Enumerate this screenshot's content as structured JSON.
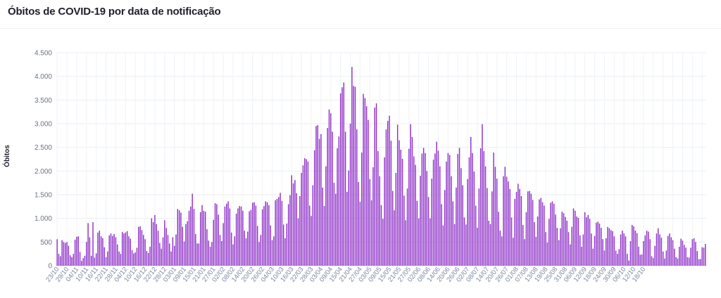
{
  "chart_data": {
    "type": "bar",
    "title": "Óbitos de COVID-19 por data de notificação",
    "xlabel": "",
    "ylabel": "Óbitos",
    "ylim": [
      0,
      4500
    ],
    "yticks": [
      0,
      500,
      1000,
      1500,
      2000,
      2500,
      3000,
      3500,
      4000,
      4500
    ],
    "ytick_labels": [
      "0",
      "500",
      "1.000",
      "1.500",
      "2.000",
      "2.500",
      "3.000",
      "3.500",
      "4.000",
      "4.500"
    ],
    "xtick_labels": [
      "23/10",
      "29/10",
      "04/11",
      "10/11",
      "16/11",
      "22/11",
      "28/11",
      "04/12",
      "10/12",
      "16/12",
      "22/12",
      "28/12",
      "03/01",
      "09/01",
      "15/01",
      "21/01",
      "27/01",
      "02/02",
      "08/02",
      "14/02",
      "20/02",
      "26/02",
      "04/03",
      "10/03",
      "16/03",
      "22/03",
      "28/03",
      "03/04",
      "09/04",
      "15/04",
      "21/04",
      "27/04",
      "03/05",
      "09/05",
      "15/05",
      "21/05",
      "27/05",
      "02/06",
      "08/06",
      "14/06",
      "20/06",
      "26/06",
      "02/07",
      "08/07",
      "14/07",
      "20/07",
      "26/07",
      "01/08",
      "07/08",
      "13/08",
      "19/08",
      "25/08",
      "31/08",
      "06/09",
      "12/09",
      "18/09",
      "24/09",
      "30/09",
      "06/10",
      "12/10",
      "18/10"
    ],
    "tick_every": 6,
    "grid": true,
    "legend": "none",
    "color": "#8e2fc7",
    "values": [
      560,
      250,
      200,
      540,
      500,
      480,
      500,
      420,
      220,
      180,
      250,
      550,
      610,
      620,
      290,
      100,
      160,
      210,
      500,
      900,
      600,
      210,
      920,
      170,
      260,
      700,
      740,
      620,
      580,
      390,
      180,
      300,
      640,
      680,
      630,
      670,
      600,
      450,
      300,
      250,
      710,
      680,
      700,
      730,
      620,
      570,
      330,
      260,
      280,
      380,
      820,
      830,
      750,
      650,
      560,
      310,
      270,
      400,
      1000,
      920,
      1070,
      880,
      740,
      480,
      360,
      600,
      960,
      800,
      650,
      470,
      300,
      600,
      420,
      660,
      1200,
      1170,
      1120,
      820,
      510,
      880,
      940,
      1160,
      1250,
      1520,
      1200,
      670,
      470,
      470,
      1130,
      1280,
      1160,
      1140,
      770,
      530,
      400,
      500,
      970,
      1320,
      1300,
      1080,
      650,
      520,
      900,
      1250,
      1310,
      1360,
      1210,
      700,
      450,
      620,
      1100,
      1210,
      1260,
      1250,
      1160,
      740,
      580,
      720,
      1150,
      1180,
      1330,
      1340,
      1270,
      840,
      500,
      650,
      1190,
      1260,
      1360,
      1340,
      1280,
      850,
      540,
      620,
      1380,
      1410,
      1450,
      1540,
      1370,
      870,
      580,
      890,
      1300,
      1490,
      1910,
      1740,
      1810,
      1530,
      1000,
      1470,
      1960,
      2120,
      2270,
      2250,
      2200,
      1270,
      1050,
      1700,
      2440,
      2950,
      2970,
      2680,
      2780,
      1650,
      1260,
      2100,
      2910,
      3300,
      3220,
      2830,
      1750,
      1520,
      2480,
      2730,
      3640,
      3770,
      3870,
      2830,
      1560,
      2010,
      3000,
      4200,
      3800,
      3780,
      2880,
      1770,
      1350,
      2390,
      3630,
      3540,
      3370,
      3080,
      1830,
      1380,
      2080,
      3340,
      3430,
      2420,
      1890,
      1280,
      990,
      2290,
      2880,
      3060,
      3170,
      2640,
      1580,
      1170,
      1960,
      2980,
      2650,
      2450,
      2260,
      1480,
      960,
      1630,
      2470,
      2990,
      2720,
      2310,
      2130,
      1370,
      1000,
      1900,
      2370,
      2490,
      2380,
      2000,
      1450,
      1000,
      1840,
      2240,
      2370,
      2620,
      2430,
      2100,
      1300,
      850,
      1600,
      2200,
      2380,
      2340,
      1890,
      1360,
      880,
      1650,
      2360,
      2490,
      2060,
      1700,
      1020,
      870,
      1830,
      2290,
      2720,
      2380,
      1990,
      1270,
      800,
      1630,
      2480,
      2990,
      2420,
      2100,
      1640,
      950,
      880,
      1570,
      2390,
      2090,
      1840,
      1140,
      740,
      620,
      1890,
      2090,
      1880,
      1780,
      1620,
      1020,
      590,
      1410,
      1560,
      1730,
      1620,
      1470,
      860,
      560,
      1130,
      1570,
      1580,
      1520,
      1390,
      920,
      610,
      1040,
      1400,
      1430,
      1340,
      1270,
      710,
      490,
      990,
      1330,
      1360,
      1310,
      1080,
      800,
      540,
      790,
      1140,
      1110,
      1030,
      950,
      710,
      450,
      820,
      1210,
      1160,
      1040,
      1010,
      640,
      400,
      660,
      1130,
      1020,
      1070,
      990,
      680,
      360,
      630,
      910,
      930,
      890,
      800,
      560,
      320,
      580,
      820,
      790,
      750,
      730,
      620,
      320,
      250,
      350,
      660,
      740,
      680,
      620,
      250,
      110,
      520,
      860,
      830,
      740,
      690,
      400,
      230,
      240,
      520,
      640,
      740,
      720,
      560,
      200,
      160,
      420,
      680,
      790,
      660,
      590,
      300,
      150,
      320,
      630,
      680,
      600,
      540,
      360,
      180,
      150,
      400,
      570,
      530,
      440,
      380,
      180,
      170,
      380,
      560,
      580,
      500,
      310,
      140,
      140,
      390,
      380,
      460
    ]
  }
}
